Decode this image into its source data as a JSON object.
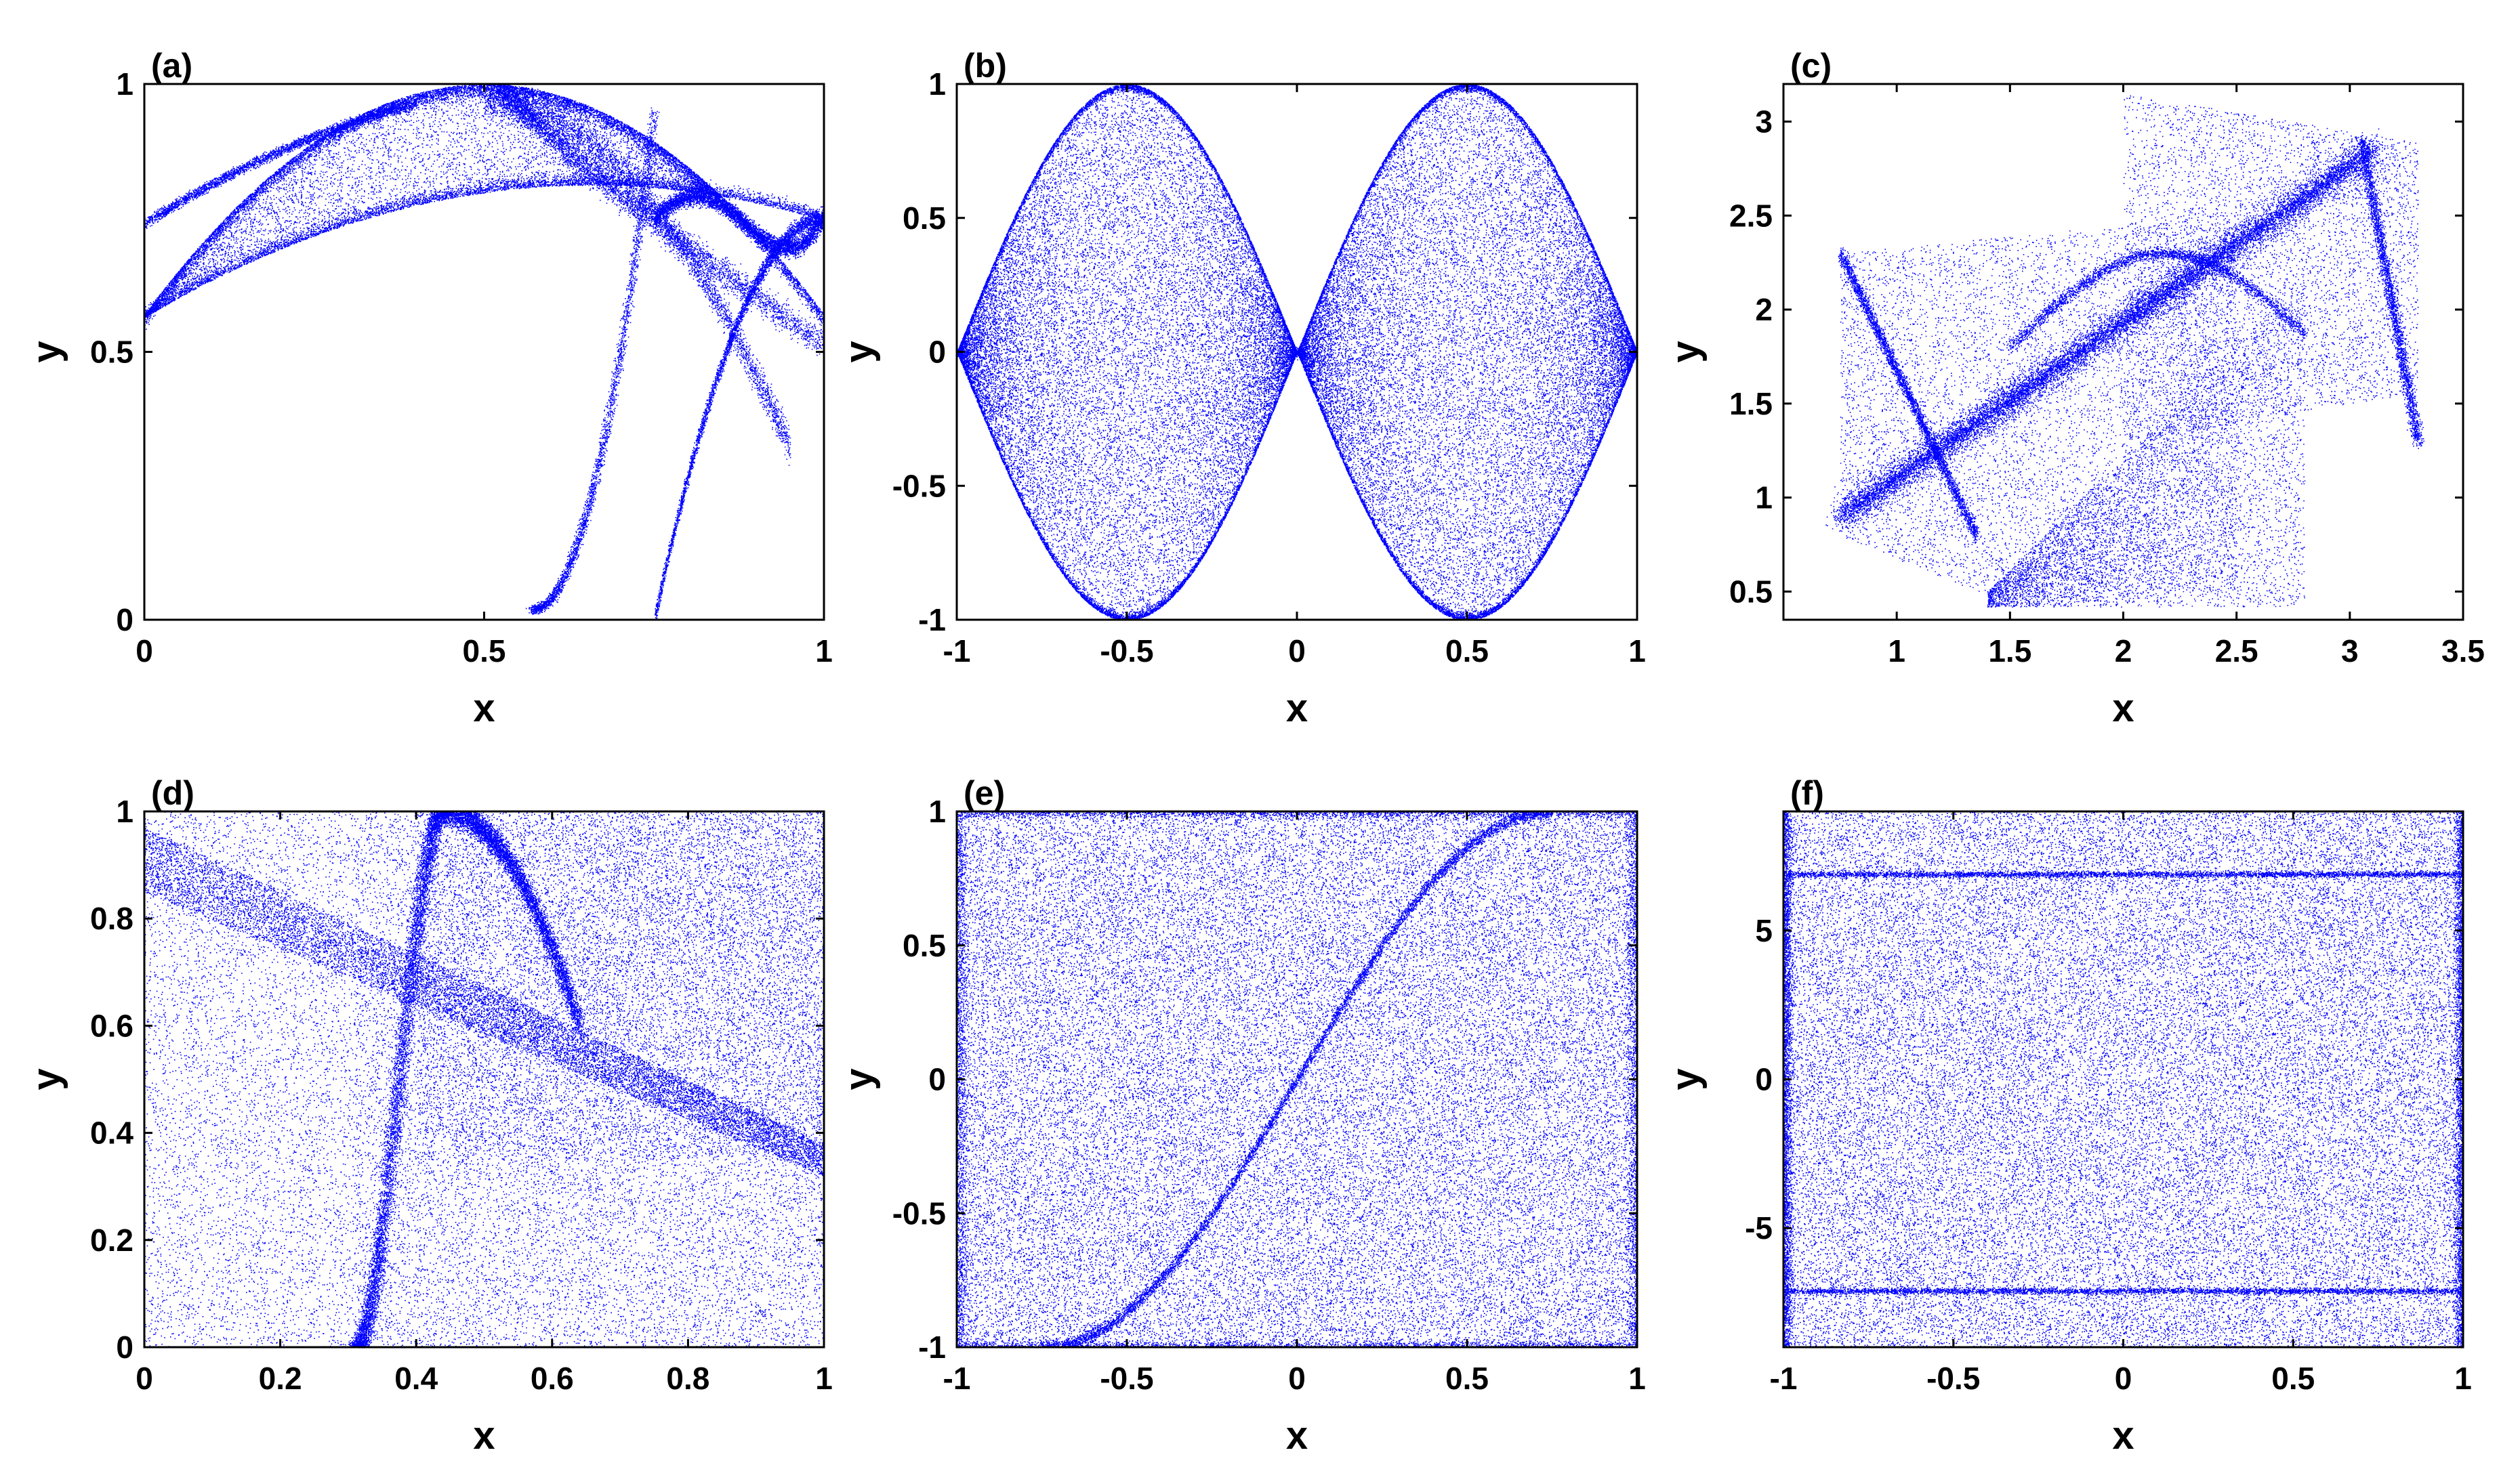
{
  "chart_data": [
    {
      "panel_label": "(a)",
      "type": "scatter",
      "xlabel": "x",
      "ylabel": "y",
      "xlim": [
        0,
        1
      ],
      "ylim": [
        0,
        1
      ],
      "xticks": [
        0,
        0.5,
        1
      ],
      "xticklabels": [
        "0",
        "0.5",
        "1"
      ],
      "yticks": [
        0,
        0.5,
        1
      ],
      "yticklabels": [
        "0",
        "0.5",
        "1"
      ],
      "color": "#0000ff",
      "attractor": "a",
      "description_points": {
        "x": [
          0,
          0.25,
          0.5,
          0.75,
          1,
          0.57,
          0.75
        ],
        "y": [
          0.57,
          0.8,
          1.0,
          0.95,
          0.75,
          0,
          0
        ]
      }
    },
    {
      "panel_label": "(b)",
      "type": "scatter",
      "xlabel": "x",
      "ylabel": "y",
      "xlim": [
        -1,
        1
      ],
      "ylim": [
        -1,
        1
      ],
      "xticks": [
        -1,
        -0.5,
        0,
        0.5,
        1
      ],
      "xticklabels": [
        "-1",
        "-0.5",
        "0",
        "0.5",
        "1"
      ],
      "yticks": [
        -1,
        -0.5,
        0,
        0.5,
        1
      ],
      "yticklabels": [
        "-1",
        "-0.5",
        "0",
        "0.5",
        "1"
      ],
      "color": "#0000ff",
      "attractor": "b",
      "description_points": {
        "x": [
          -1,
          -0.5,
          0,
          0.5,
          1,
          -0.5,
          0.5
        ],
        "y": [
          0,
          1,
          0,
          1,
          0,
          -1,
          -1
        ]
      }
    },
    {
      "panel_label": "(c)",
      "type": "scatter",
      "xlabel": "x",
      "ylabel": "y",
      "xlim": [
        0.5,
        3.5
      ],
      "ylim": [
        0.35,
        3.2
      ],
      "xticks": [
        1,
        1.5,
        2,
        2.5,
        3,
        3.5
      ],
      "xticklabels": [
        "1",
        "1.5",
        "2",
        "2.5",
        "3",
        "3.5"
      ],
      "yticks": [
        0.5,
        1,
        1.5,
        2,
        2.5,
        3
      ],
      "yticklabels": [
        "0.5",
        "1",
        "1.5",
        "2",
        "2.5",
        "3"
      ],
      "color": "#0000ff",
      "attractor": "c",
      "description_points": {
        "x": [
          0.75,
          2.0,
          3.1,
          3.3,
          1.35,
          2.75
        ],
        "y": [
          2.3,
          2.5,
          2.9,
          1.3,
          0.5,
          0.42
        ]
      }
    },
    {
      "panel_label": "(d)",
      "type": "scatter",
      "xlabel": "x",
      "ylabel": "y",
      "xlim": [
        0,
        1
      ],
      "ylim": [
        0,
        1
      ],
      "xticks": [
        0,
        0.2,
        0.4,
        0.6,
        0.8,
        1
      ],
      "xticklabels": [
        "0",
        "0.2",
        "0.4",
        "0.6",
        "0.8",
        "1"
      ],
      "yticks": [
        0,
        0.2,
        0.4,
        0.6,
        0.8,
        1
      ],
      "yticklabels": [
        "0",
        "0.2",
        "0.4",
        "0.6",
        "0.8",
        "1"
      ],
      "color": "#0000ff",
      "attractor": "d",
      "description_points": {
        "x": [
          0,
          1,
          0,
          1,
          0.31,
          0.44,
          0.6
        ],
        "y": [
          0.97,
          0.38,
          0.85,
          0.32,
          0,
          1.0,
          0.62
        ]
      }
    },
    {
      "panel_label": "(e)",
      "type": "scatter",
      "xlabel": "x",
      "ylabel": "y",
      "xlim": [
        -1,
        1
      ],
      "ylim": [
        -1,
        1
      ],
      "xticks": [
        -1,
        -0.5,
        0,
        0.5,
        1
      ],
      "xticklabels": [
        "-1",
        "-0.5",
        "0",
        "0.5",
        "1"
      ],
      "yticks": [
        -1,
        -0.5,
        0,
        0.5,
        1
      ],
      "yticklabels": [
        "-1",
        "-0.5",
        "0",
        "0.5",
        "1"
      ],
      "color": "#0000ff",
      "attractor": "e",
      "description_points": {
        "x": [
          -0.75,
          0,
          0.75
        ],
        "y": [
          -1,
          0,
          1
        ]
      }
    },
    {
      "panel_label": "(f)",
      "type": "scatter",
      "xlabel": "x",
      "ylabel": "y",
      "xlim": [
        -1,
        1
      ],
      "ylim": [
        -9,
        9
      ],
      "xticks": [
        -1,
        -0.5,
        0,
        0.5,
        1
      ],
      "xticklabels": [
        "-1",
        "-0.5",
        "0",
        "0.5",
        "1"
      ],
      "yticks": [
        -5,
        0,
        5
      ],
      "yticklabels": [
        "-5",
        "0",
        "5"
      ],
      "color": "#0000ff",
      "attractor": "f",
      "description_points": {
        "x": [
          -1,
          1,
          -1,
          1
        ],
        "y": [
          6.9,
          6.9,
          -7.1,
          -7.1
        ]
      }
    }
  ]
}
